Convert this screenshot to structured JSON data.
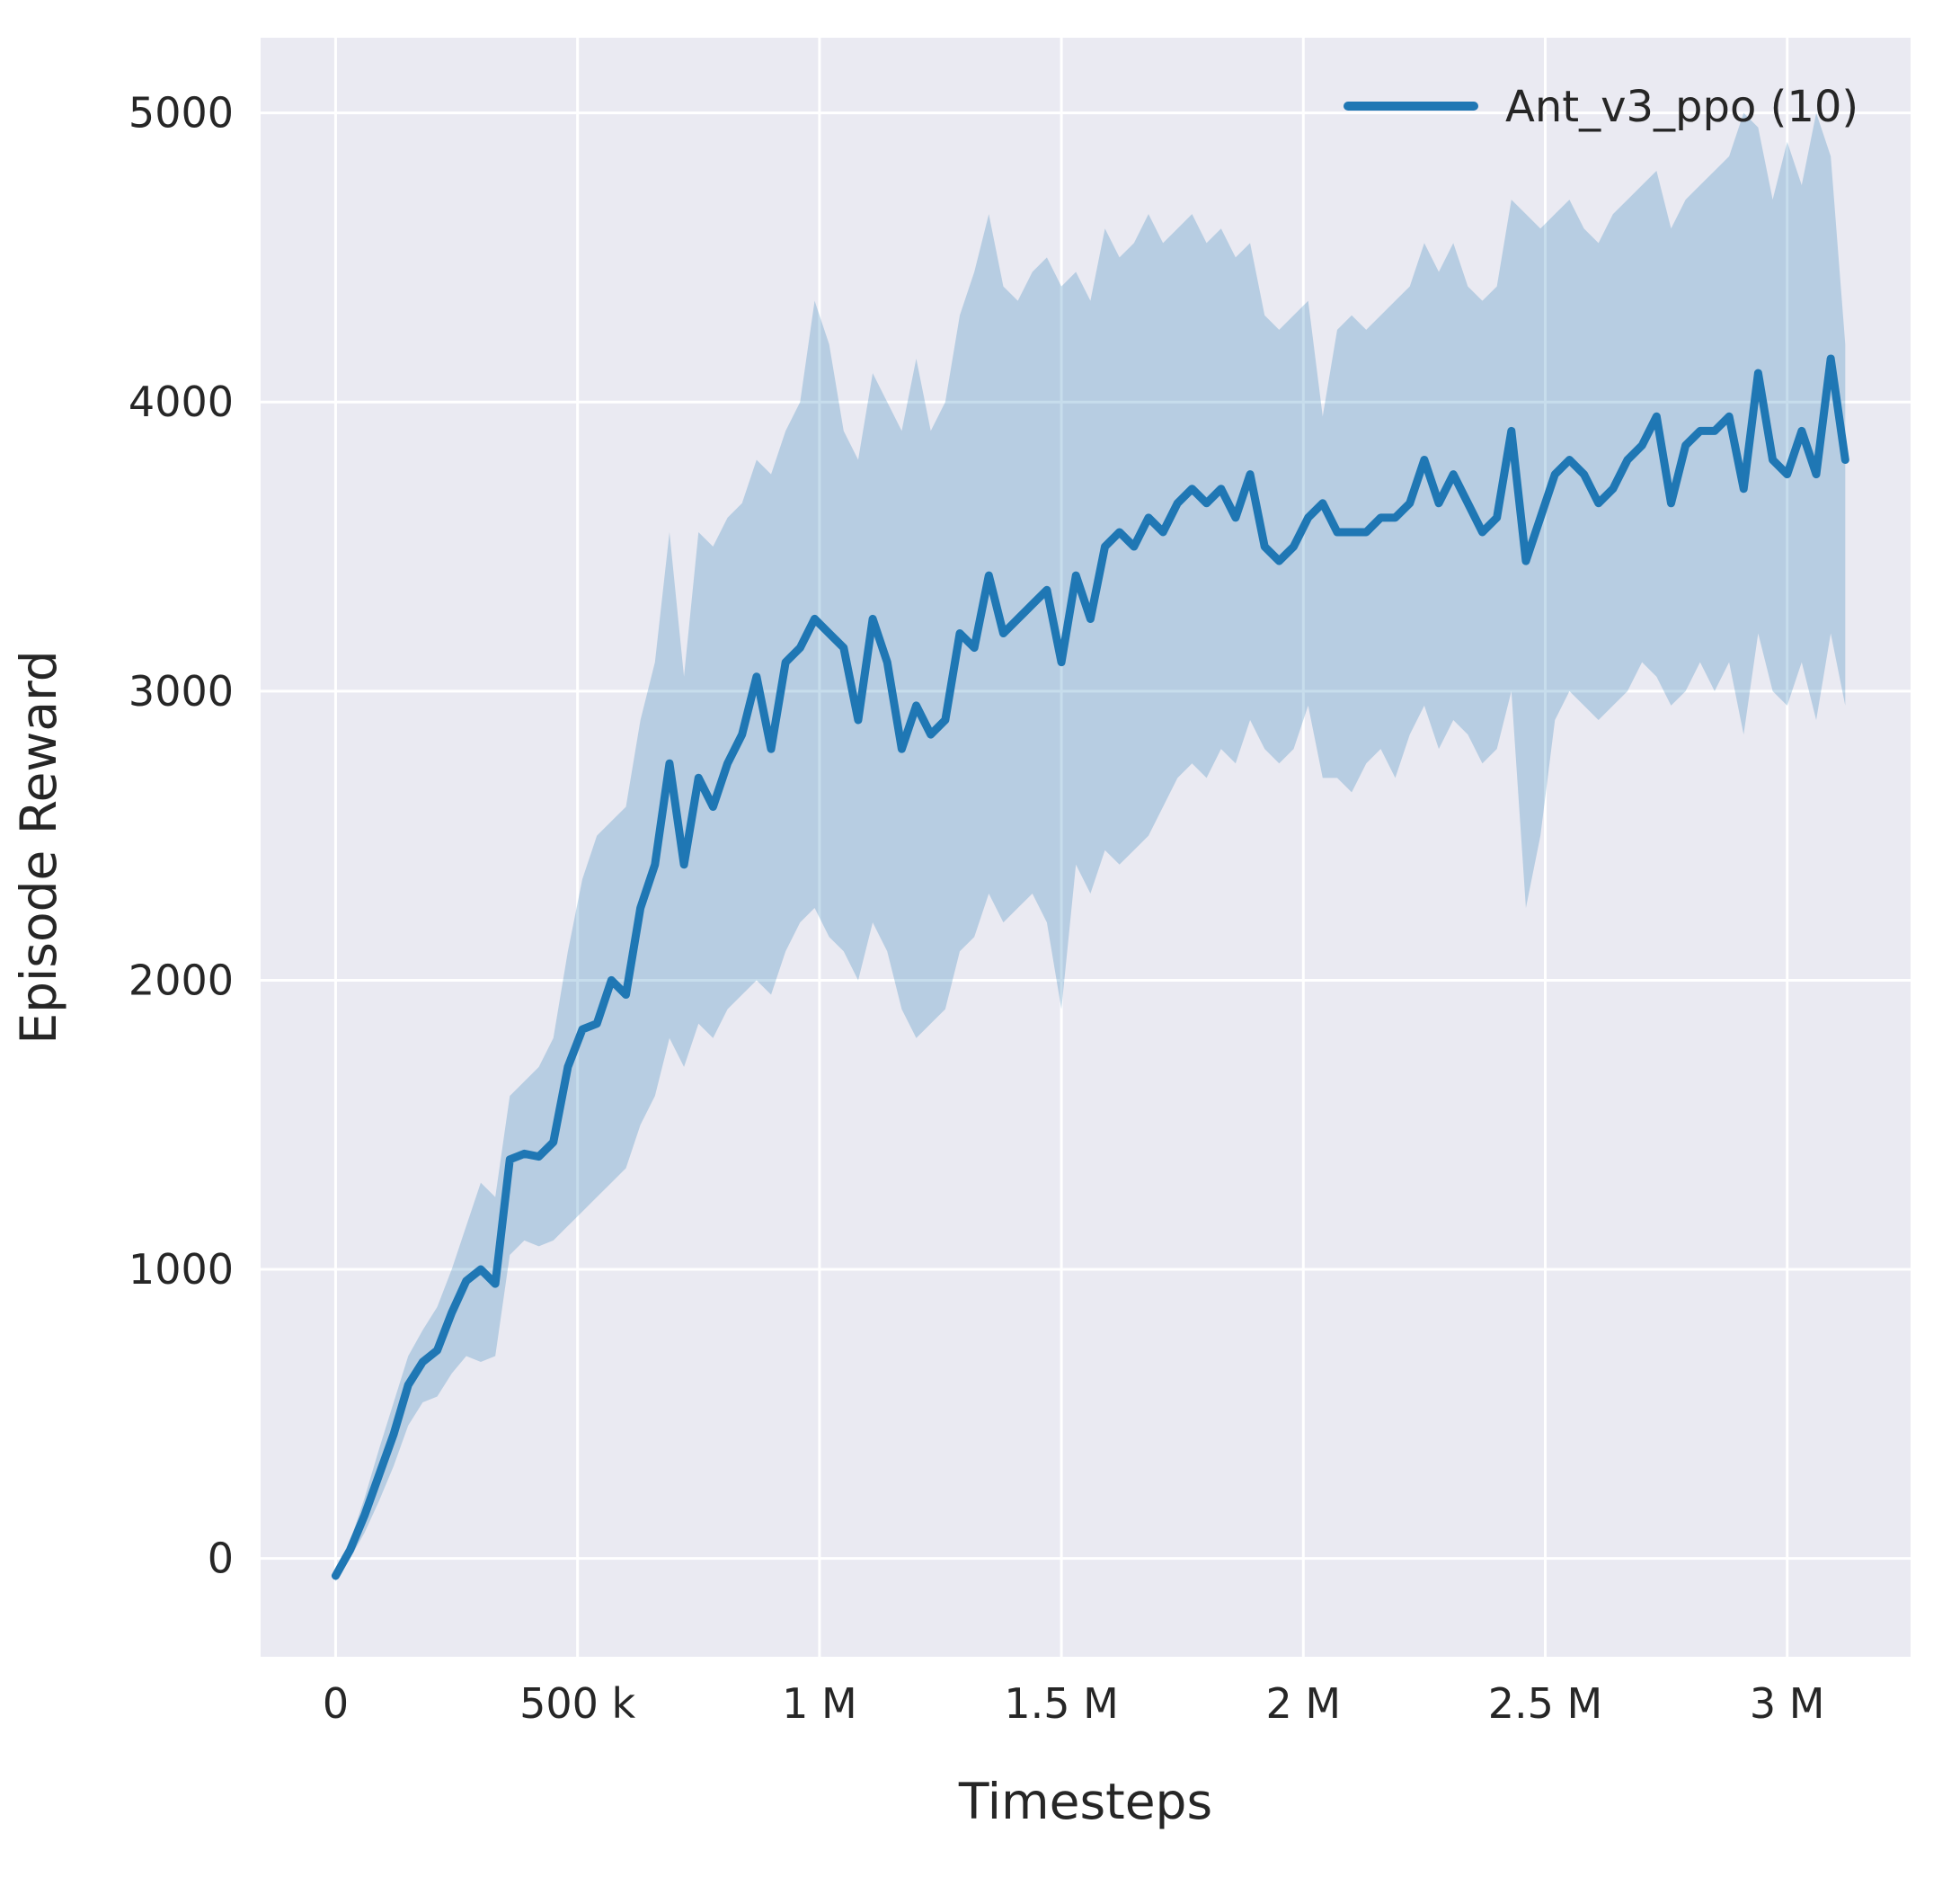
{
  "figure": {
    "background": "#ffffff"
  },
  "chart_data": {
    "type": "line",
    "title": "",
    "xlabel": "Timesteps",
    "ylabel": "Episode Reward",
    "grid": true,
    "legend_position": "upper right",
    "colors": {
      "line": "#1f77b4",
      "band": "#1f77b4",
      "band_opacity": 0.25,
      "plot_background": "#eaeaf2",
      "grid": "#ffffff",
      "text": "#262626"
    },
    "xlim": [
      -155000,
      3255000
    ],
    "ylim": [
      -340,
      5260
    ],
    "xticks": {
      "values": [
        0,
        500000,
        1000000,
        1500000,
        2000000,
        2500000,
        3000000
      ],
      "labels": [
        "0",
        "500 k",
        "1 M",
        "1.5 M",
        "2 M",
        "2.5 M",
        "3 M"
      ]
    },
    "yticks": {
      "values": [
        0,
        1000,
        2000,
        3000,
        4000,
        5000
      ],
      "labels": [
        "0",
        "1000",
        "2000",
        "3000",
        "4000",
        "5000"
      ]
    },
    "series": [
      {
        "name": "Ant_v3_ppo (10)",
        "x": [
          0,
          30000,
          60000,
          90000,
          120000,
          150000,
          180000,
          210000,
          240000,
          270000,
          300000,
          330000,
          360000,
          390000,
          420000,
          450000,
          480000,
          510000,
          540000,
          570000,
          600000,
          630000,
          660000,
          690000,
          720000,
          750000,
          780000,
          810000,
          840000,
          870000,
          900000,
          930000,
          960000,
          990000,
          1020000,
          1050000,
          1080000,
          1110000,
          1140000,
          1170000,
          1200000,
          1230000,
          1260000,
          1290000,
          1320000,
          1350000,
          1380000,
          1410000,
          1440000,
          1470000,
          1500000,
          1530000,
          1560000,
          1590000,
          1620000,
          1650000,
          1680000,
          1710000,
          1740000,
          1770000,
          1800000,
          1830000,
          1860000,
          1890000,
          1920000,
          1950000,
          1980000,
          2010000,
          2040000,
          2070000,
          2100000,
          2130000,
          2160000,
          2190000,
          2220000,
          2250000,
          2280000,
          2310000,
          2340000,
          2370000,
          2400000,
          2430000,
          2460000,
          2490000,
          2520000,
          2550000,
          2580000,
          2610000,
          2640000,
          2670000,
          2700000,
          2730000,
          2760000,
          2790000,
          2820000,
          2850000,
          2880000,
          2910000,
          2940000,
          2970000,
          3000000,
          3030000,
          3060000,
          3090000,
          3120000
        ],
        "mean": [
          -60,
          30,
          150,
          290,
          430,
          600,
          680,
          720,
          850,
          960,
          1000,
          950,
          1380,
          1400,
          1390,
          1440,
          1700,
          1830,
          1850,
          2000,
          1950,
          2250,
          2400,
          2750,
          2400,
          2700,
          2600,
          2750,
          2850,
          3050,
          2800,
          3100,
          3150,
          3250,
          3200,
          3150,
          2900,
          3250,
          3100,
          2800,
          2950,
          2850,
          2900,
          3200,
          3150,
          3400,
          3200,
          3250,
          3300,
          3350,
          3100,
          3400,
          3250,
          3500,
          3550,
          3500,
          3600,
          3550,
          3650,
          3700,
          3650,
          3700,
          3600,
          3750,
          3500,
          3450,
          3500,
          3600,
          3650,
          3550,
          3550,
          3550,
          3600,
          3600,
          3650,
          3800,
          3650,
          3750,
          3650,
          3550,
          3600,
          3900,
          3450,
          3600,
          3750,
          3800,
          3750,
          3650,
          3700,
          3800,
          3850,
          3950,
          3650,
          3850,
          3900,
          3900,
          3950,
          3700,
          4100,
          3800,
          3750,
          3900,
          3750,
          4150,
          3800
        ],
        "low": [
          -80,
          0,
          90,
          200,
          320,
          460,
          540,
          560,
          640,
          700,
          680,
          700,
          1050,
          1100,
          1080,
          1100,
          1150,
          1200,
          1250,
          1300,
          1350,
          1500,
          1600,
          1800,
          1700,
          1850,
          1800,
          1900,
          1950,
          2000,
          1950,
          2100,
          2200,
          2250,
          2150,
          2100,
          2000,
          2200,
          2100,
          1900,
          1800,
          1850,
          1900,
          2100,
          2150,
          2300,
          2200,
          2250,
          2300,
          2200,
          1900,
          2400,
          2300,
          2450,
          2400,
          2450,
          2500,
          2600,
          2700,
          2750,
          2700,
          2800,
          2750,
          2900,
          2800,
          2750,
          2800,
          2950,
          2700,
          2700,
          2650,
          2750,
          2800,
          2700,
          2850,
          2950,
          2800,
          2900,
          2850,
          2750,
          2800,
          3000,
          2250,
          2500,
          2900,
          3000,
          2950,
          2900,
          2950,
          3000,
          3100,
          3050,
          2950,
          3000,
          3100,
          3000,
          3100,
          2850,
          3200,
          3000,
          2950,
          3100,
          2900,
          3200,
          2950
        ],
        "high": [
          -40,
          60,
          210,
          380,
          540,
          700,
          790,
          870,
          1000,
          1150,
          1300,
          1250,
          1600,
          1650,
          1700,
          1800,
          2100,
          2350,
          2500,
          2550,
          2600,
          2900,
          3100,
          3550,
          3050,
          3550,
          3500,
          3600,
          3650,
          3800,
          3750,
          3900,
          4000,
          4350,
          4200,
          3900,
          3800,
          4100,
          4000,
          3900,
          4150,
          3900,
          4000,
          4300,
          4450,
          4650,
          4400,
          4350,
          4450,
          4500,
          4400,
          4450,
          4350,
          4600,
          4500,
          4550,
          4650,
          4550,
          4600,
          4650,
          4550,
          4600,
          4500,
          4550,
          4300,
          4250,
          4300,
          4350,
          3950,
          4250,
          4300,
          4250,
          4300,
          4350,
          4400,
          4550,
          4450,
          4550,
          4400,
          4350,
          4400,
          4700,
          4650,
          4600,
          4650,
          4700,
          4600,
          4550,
          4650,
          4700,
          4750,
          4800,
          4600,
          4700,
          4750,
          4800,
          4850,
          5000,
          4950,
          4700,
          4900,
          4750,
          5000,
          4850,
          4200
        ]
      }
    ]
  }
}
